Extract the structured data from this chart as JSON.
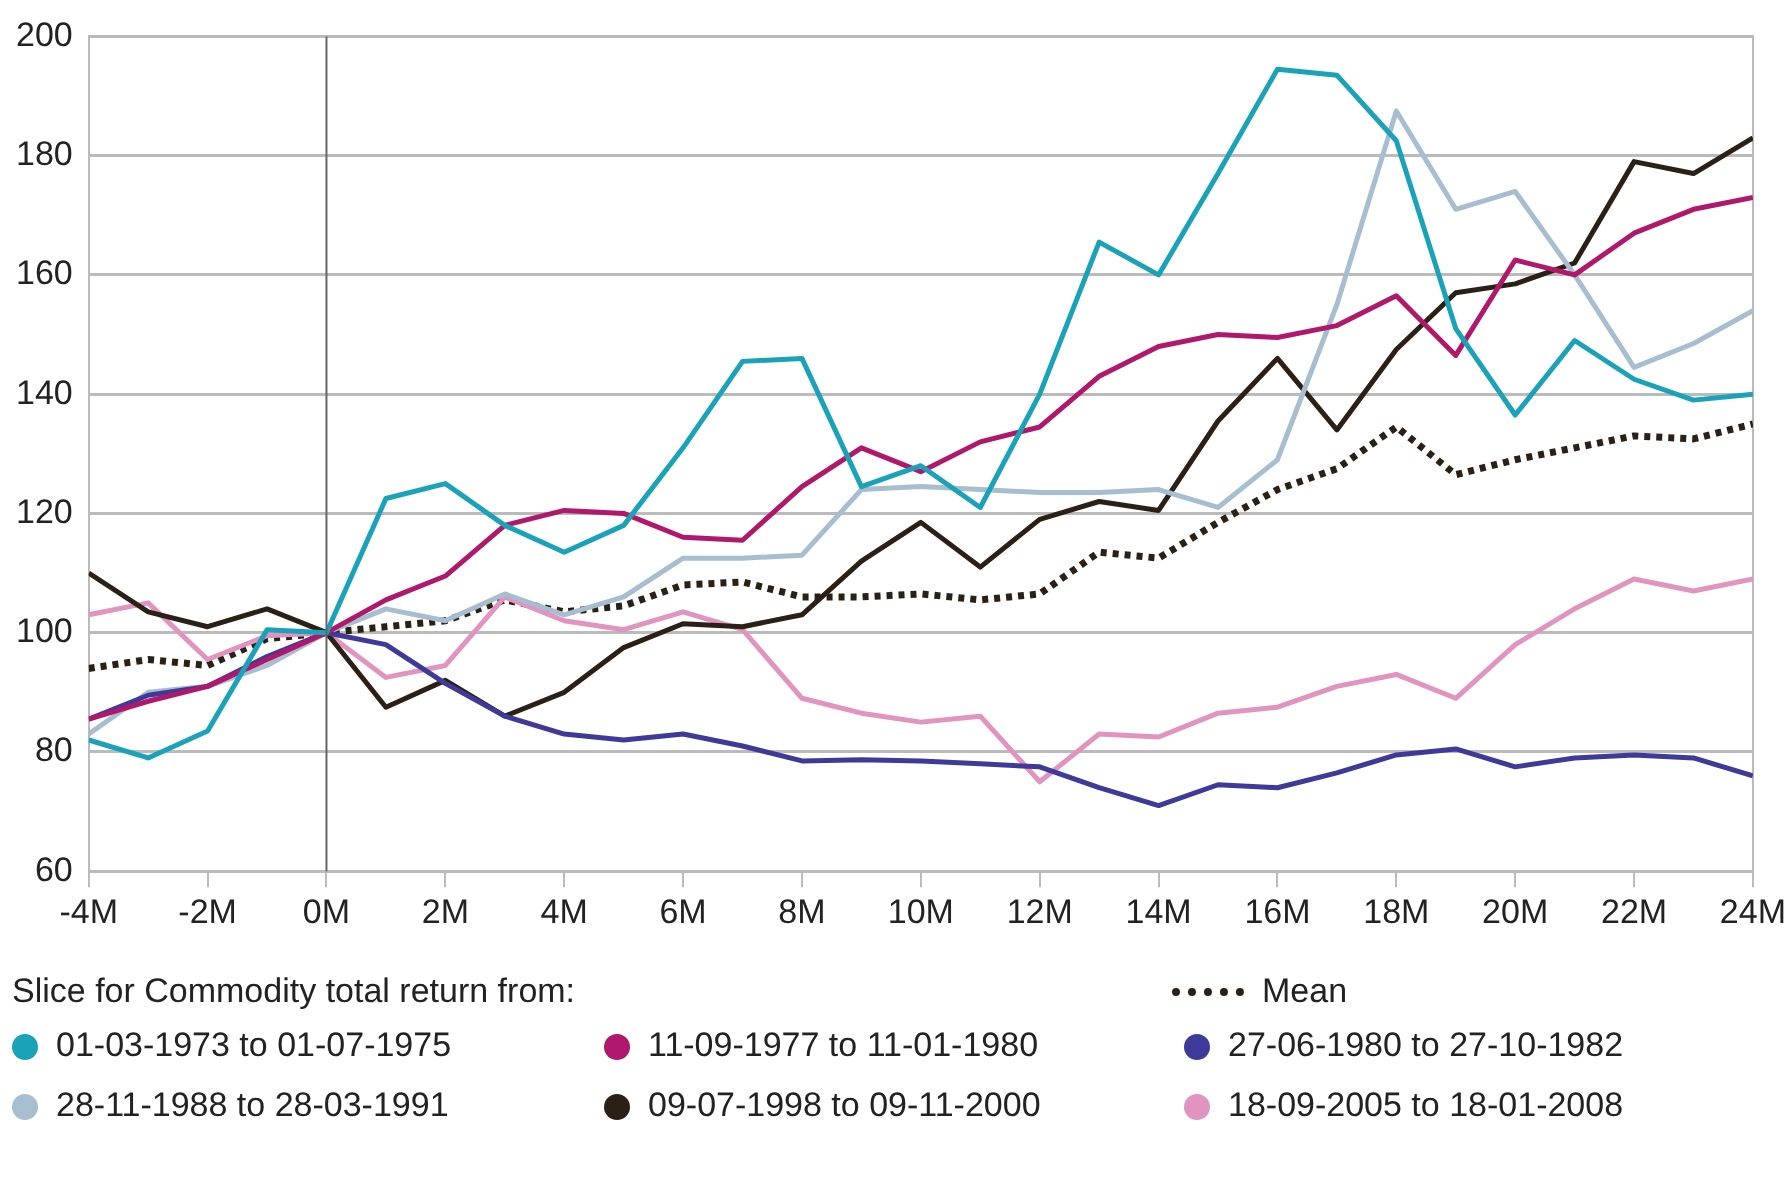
{
  "chart_data": {
    "type": "line",
    "legend_title": "Slice for Commodity total return from:",
    "legend": "bottom",
    "grid": "y",
    "marker": "none",
    "xlim": [
      -4,
      24
    ],
    "ylim": [
      60,
      200
    ],
    "xticks": [
      {
        "value": -4,
        "label": "-4M"
      },
      {
        "value": -2,
        "label": "-2M"
      },
      {
        "value": 0,
        "label": "0M"
      },
      {
        "value": 2,
        "label": "2M"
      },
      {
        "value": 4,
        "label": "4M"
      },
      {
        "value": 6,
        "label": "6M"
      },
      {
        "value": 8,
        "label": "8M"
      },
      {
        "value": 10,
        "label": "10M"
      },
      {
        "value": 12,
        "label": "12M"
      },
      {
        "value": 14,
        "label": "14M"
      },
      {
        "value": 16,
        "label": "16M"
      },
      {
        "value": 18,
        "label": "18M"
      },
      {
        "value": 20,
        "label": "20M"
      },
      {
        "value": 22,
        "label": "22M"
      },
      {
        "value": 24,
        "label": "24M"
      }
    ],
    "yticks": [
      60,
      80,
      100,
      120,
      140,
      160,
      180,
      200
    ],
    "ref_lines": [
      {
        "axis": "x",
        "value": 0,
        "color": "#666666"
      }
    ],
    "x": [
      -4,
      -3,
      -2,
      -1,
      0,
      1,
      2,
      3,
      4,
      5,
      6,
      7,
      8,
      9,
      10,
      11,
      12,
      13,
      14,
      15,
      16,
      17,
      18,
      19,
      20,
      21,
      22,
      23,
      24
    ],
    "series": [
      {
        "name": "01-03-1973 to 01-07-1975",
        "color": "#1aa3b8",
        "values": [
          82,
          79,
          83.5,
          100.5,
          100,
          122.5,
          125,
          118,
          113.5,
          118,
          131,
          145.5,
          146,
          124.5,
          128,
          121,
          140,
          165.5,
          160,
          177,
          194.5,
          193.5,
          182.5,
          151,
          136.5,
          149,
          142.5,
          139,
          140
        ]
      },
      {
        "name": "11-09-1977 to 11-01-1980",
        "color": "#b0186c",
        "values": [
          85.5,
          88.5,
          91,
          95.5,
          100,
          105.5,
          109.5,
          118,
          120.5,
          120,
          116,
          115.5,
          124.5,
          131,
          127,
          132,
          134.5,
          143,
          148,
          150,
          149.5,
          151.5,
          156.5,
          146.5,
          162.5,
          160,
          167,
          171,
          173
        ]
      },
      {
        "name": "27-06-1980 to 27-10-1982",
        "color": "#3e3a9a",
        "values": [
          85.5,
          89.5,
          91,
          96,
          100,
          98,
          91.5,
          86,
          83,
          82,
          83,
          81,
          78.5,
          78.7,
          78.5,
          78,
          77.5,
          74,
          71,
          74.5,
          74,
          76.5,
          79.5,
          80.5,
          77.5,
          79,
          79.5,
          79,
          76
        ]
      },
      {
        "name": "28-11-1988 to 28-03-1991",
        "color": "#a7bdd0",
        "values": [
          83,
          90,
          91,
          94.5,
          100,
          104,
          102,
          106.5,
          103,
          106,
          112.5,
          112.5,
          113,
          124,
          124.5,
          124,
          123.5,
          123.5,
          124,
          121,
          129,
          155,
          187.5,
          171,
          174,
          160,
          144.5,
          148.5,
          154
        ]
      },
      {
        "name": "09-07-1998 to 09-11-2000",
        "color": "#2b2015",
        "values": [
          110,
          103.5,
          101,
          104,
          100,
          87.5,
          92,
          86,
          90,
          97.5,
          101.5,
          101,
          103,
          112,
          118.5,
          111,
          119,
          122,
          120.5,
          135.5,
          146,
          134,
          147.5,
          157,
          158.5,
          162,
          179,
          177,
          183
        ]
      },
      {
        "name": "18-09-2005 to 18-01-2008",
        "color": "#e094bf",
        "values": [
          103,
          105,
          95.5,
          99.5,
          100,
          92.5,
          94.5,
          106,
          102,
          100.5,
          103.5,
          100.5,
          89,
          86.5,
          85,
          86,
          75,
          83,
          82.5,
          86.5,
          87.5,
          91,
          93,
          89,
          98,
          104,
          109,
          107,
          109
        ]
      },
      {
        "name": "Mean",
        "color": "#2b2015",
        "line_style": "dotted",
        "values": [
          94,
          95.5,
          94.5,
          99,
          100,
          101,
          102,
          105.5,
          103.5,
          104.5,
          108,
          108.5,
          106,
          106,
          106.5,
          105.5,
          106.5,
          113.5,
          112.5,
          118.5,
          124,
          127.5,
          134.5,
          126.5,
          129,
          131,
          133,
          132.5,
          135
        ]
      }
    ]
  }
}
